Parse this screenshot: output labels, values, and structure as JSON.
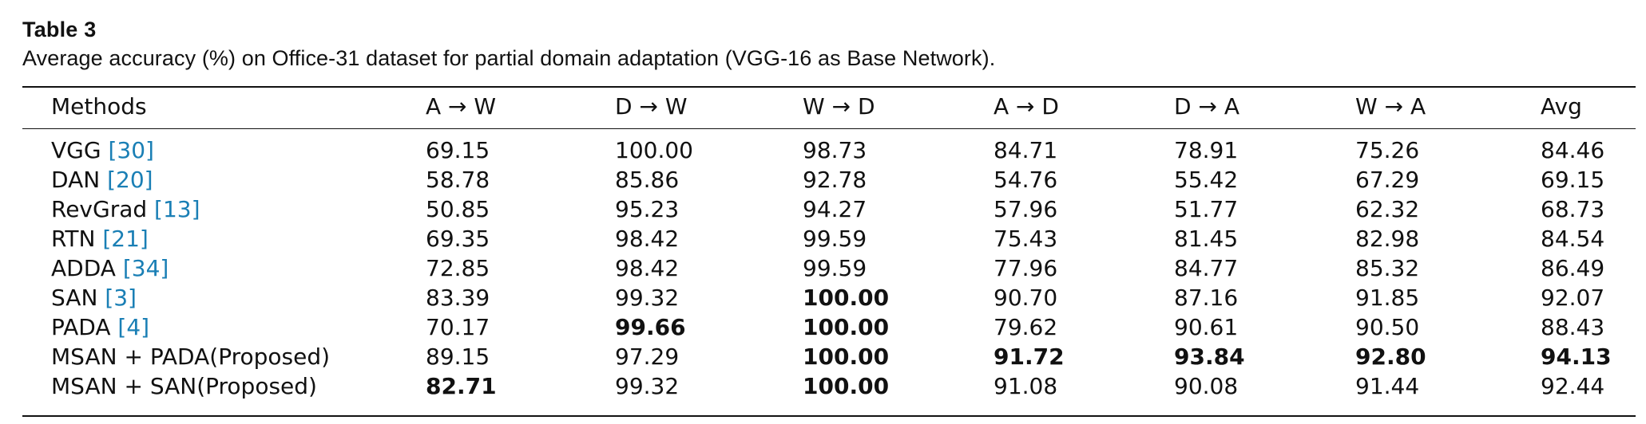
{
  "title": "Table 3",
  "caption": "Average accuracy (%) on Office-31 dataset for partial domain adaptation (VGG-16 as Base Network).",
  "columns": [
    "Methods",
    "A → W",
    "D → W",
    "W → D",
    "A → D",
    "D → A",
    "W → A",
    "Avg"
  ],
  "rows": [
    {
      "method": "VGG",
      "ref": "[30]",
      "values": [
        "69.15",
        "100.00",
        "98.73",
        "84.71",
        "78.91",
        "75.26",
        "84.46"
      ],
      "bold": []
    },
    {
      "method": "DAN",
      "ref": "[20]",
      "values": [
        "58.78",
        "85.86",
        "92.78",
        "54.76",
        "55.42",
        "67.29",
        "69.15"
      ],
      "bold": []
    },
    {
      "method": "RevGrad",
      "ref": "[13]",
      "values": [
        "50.85",
        "95.23",
        "94.27",
        "57.96",
        "51.77",
        "62.32",
        "68.73"
      ],
      "bold": []
    },
    {
      "method": "RTN",
      "ref": "[21]",
      "values": [
        "69.35",
        "98.42",
        "99.59",
        "75.43",
        "81.45",
        "82.98",
        "84.54"
      ],
      "bold": []
    },
    {
      "method": "ADDA",
      "ref": "[34]",
      "values": [
        "72.85",
        "98.42",
        "99.59",
        "77.96",
        "84.77",
        "85.32",
        "86.49"
      ],
      "bold": []
    },
    {
      "method": "SAN",
      "ref": "[3]",
      "values": [
        "83.39",
        "99.32",
        "100.00",
        "90.70",
        "87.16",
        "91.85",
        "92.07"
      ],
      "bold": [
        2
      ]
    },
    {
      "method": "PADA",
      "ref": "[4]",
      "values": [
        "70.17",
        "99.66",
        "100.00",
        "79.62",
        "90.61",
        "90.50",
        "88.43"
      ],
      "bold": [
        1,
        2
      ]
    },
    {
      "method": "MSAN + PADA(Proposed)",
      "ref": "",
      "values": [
        "89.15",
        "97.29",
        "100.00",
        "91.72",
        "93.84",
        "92.80",
        "94.13"
      ],
      "bold": [
        2,
        3,
        4,
        5,
        6
      ]
    },
    {
      "method": "MSAN + SAN(Proposed)",
      "ref": "",
      "values": [
        "82.71",
        "99.32",
        "100.00",
        "91.08",
        "90.08",
        "91.44",
        "92.44"
      ],
      "bold": [
        0,
        2
      ]
    }
  ],
  "colors": {
    "reference_link": "#1a7fb5",
    "text": "#111111"
  }
}
